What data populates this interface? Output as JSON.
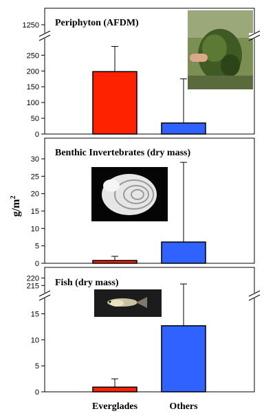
{
  "colors": {
    "everglades": "#ff2200",
    "others": "#2f62ff"
  },
  "chart_data": {
    "type": "bar",
    "ylabel_base": "g/m",
    "ylabel_sup": "2",
    "categories": [
      "Everglades",
      "Others"
    ],
    "panels": [
      {
        "title": "Periphyton (AFDM)",
        "values": [
          198,
          35
        ],
        "error_upper": [
          278,
          175
        ],
        "lower_ylim": [
          0,
          290
        ],
        "lower_ticks": [
          0,
          50,
          100,
          150,
          200,
          250
        ],
        "upper_ticks": [
          1250
        ],
        "axis_break": true,
        "photo": "plant-photo"
      },
      {
        "title": "Benthic Invertebrates (dry mass)",
        "values": [
          0.8,
          6.1
        ],
        "error_upper": [
          2.0,
          29.0
        ],
        "lower_ylim": [
          0,
          31
        ],
        "lower_ticks": [
          0,
          5,
          10,
          15,
          20,
          25,
          30
        ],
        "axis_break": false,
        "photo": "snail-shell-photo"
      },
      {
        "title": "Fish (dry mass)",
        "values": [
          0.9,
          12.7
        ],
        "error_upper": [
          2.5,
          216
        ],
        "lower_ylim": [
          0,
          18.5
        ],
        "lower_ticks": [
          0,
          5,
          10,
          15
        ],
        "upper_ticks": [
          215,
          220
        ],
        "axis_break": true,
        "photo": "fish-photo"
      }
    ]
  }
}
